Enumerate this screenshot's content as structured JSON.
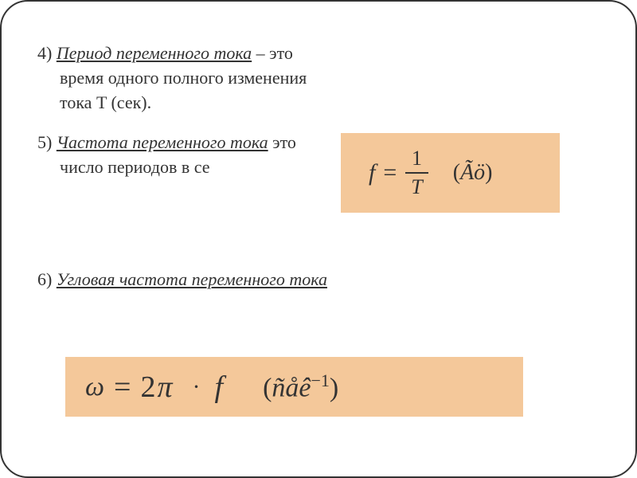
{
  "item4": {
    "number": "4) ",
    "title": "Период переменного тока",
    "separator": " – это",
    "line2": "время одного полного изменения",
    "line3": "тока  T (сек)."
  },
  "item5": {
    "number": "5) ",
    "title": "Частота переменного тока",
    "separator": "   это",
    "line2": "число периодов в се"
  },
  "formula1": {
    "variable": "f",
    "equals": "=",
    "numerator": "1",
    "denominator": "T",
    "unit_open": "(",
    "unit_letter1": "Ã",
    "unit_letter2": "ö",
    "unit_close": ")"
  },
  "item6": {
    "number": "6) ",
    "title": "Угловая частота переменного тока"
  },
  "formula2": {
    "omega": "ω",
    "equals": "=",
    "two": "2",
    "pi": "π",
    "dot": "·",
    "f": "f",
    "unit_open": "(",
    "unit_letter1": "ñ",
    "unit_letter2": "å",
    "unit_letter3": "ê",
    "exponent": "−1",
    "unit_close": ")"
  },
  "colors": {
    "formula_bg": "#f4c89a",
    "text": "#333333",
    "page_bg": "#ffffff"
  }
}
